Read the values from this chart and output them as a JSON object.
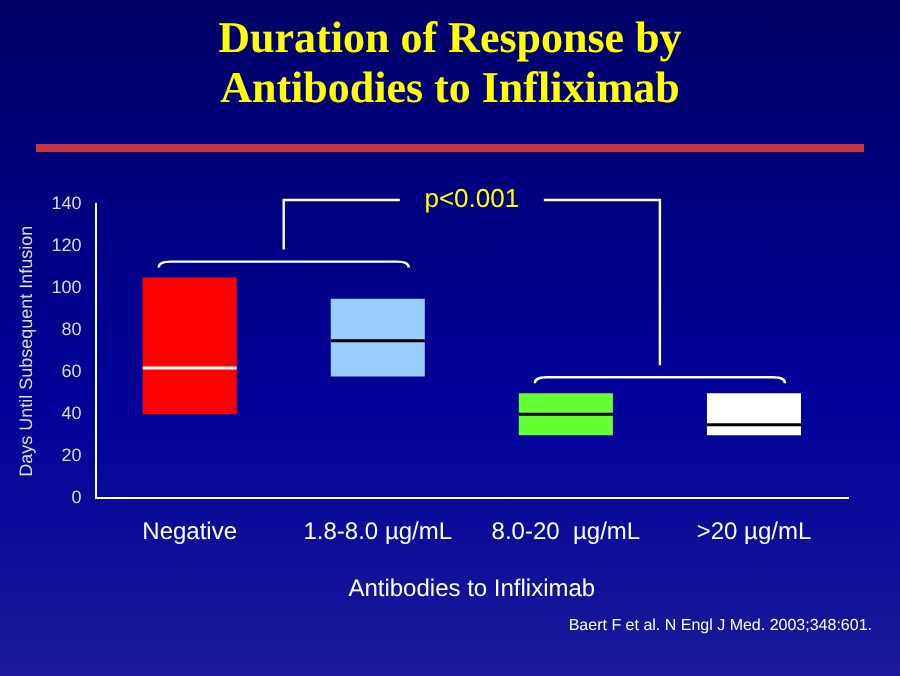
{
  "chart_data": {
    "type": "box",
    "title": "Duration of Response by\nAntibodies to Infliximab",
    "xlabel": "Antibodies to Infliximab",
    "ylabel": "Days Until Subsequent Infusion",
    "categories": [
      "Negative",
      "1.8-8.0 µg/mL",
      "8.0-20  µg/mL",
      ">20 µg/mL"
    ],
    "colors": [
      "#ff0000",
      "#99ccff",
      "#66ff33",
      "#ffffff"
    ],
    "boxes": [
      {
        "low": 40,
        "q1": 40,
        "median": 62,
        "q3": 105,
        "high": 105
      },
      {
        "low": 58,
        "q1": 58,
        "median": 75,
        "q3": 95,
        "high": 95
      },
      {
        "low": 30,
        "q1": 30,
        "median": 40,
        "q3": 50,
        "high": 50
      },
      {
        "low": 30,
        "q1": 30,
        "median": 35,
        "q3": 50,
        "high": 50
      }
    ],
    "ylim": [
      0,
      140
    ],
    "yticks": [
      0,
      20,
      40,
      60,
      80,
      100,
      120,
      140
    ],
    "grid": false,
    "legend": false,
    "annotations": [
      "p<0.001",
      "Baert F et al. N Engl J Med. 2003;348:601."
    ]
  }
}
